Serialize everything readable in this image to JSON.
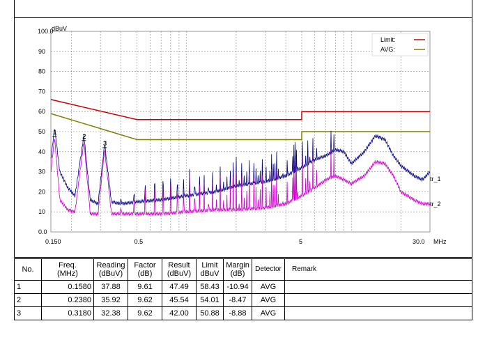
{
  "chart_data": {
    "type": "line",
    "title": "",
    "ylabel": "dBuV",
    "xlabel": "MHz",
    "x_scale": "log",
    "xlim": [
      0.15,
      30.0
    ],
    "ylim": [
      0.0,
      100.0
    ],
    "y_ticks": [
      "0.0",
      "10",
      "20",
      "30",
      "40",
      "50",
      "60",
      "70",
      "80",
      "90",
      "100.0"
    ],
    "x_tick_labels": [
      "0.150",
      "0.5",
      "5",
      "30.0"
    ],
    "x_ticks": [
      0.15,
      0.5,
      5,
      30
    ],
    "grid": true,
    "legend_position": "top-right",
    "legend": [
      {
        "label": "Limit:",
        "color": "#cc0000"
      },
      {
        "label": "AVG:",
        "color": "#808000"
      }
    ],
    "series": [
      {
        "name": "Limit:",
        "color": "#cc0000",
        "x": [
          0.15,
          0.5,
          0.5,
          5.0,
          5.0,
          30.0
        ],
        "y": [
          66.0,
          56.0,
          56.0,
          56.0,
          60.0,
          60.0
        ]
      },
      {
        "name": "AVG:",
        "color": "#808000",
        "x": [
          0.15,
          0.5,
          0.5,
          5.0,
          5.0,
          30.0
        ],
        "y": [
          59.0,
          46.0,
          46.0,
          46.0,
          50.0,
          50.0
        ]
      },
      {
        "name": "",
        "color": "#000080",
        "x": [
          0.15,
          0.158,
          0.17,
          0.19,
          0.21,
          0.238,
          0.26,
          0.29,
          0.318,
          0.35,
          0.4,
          0.5,
          0.7,
          1.0,
          1.5,
          2.0,
          3.0,
          4.0,
          5.0,
          6.0,
          7.0,
          8.0,
          9.0,
          10.0,
          12.0,
          14.0,
          16.0,
          18.0,
          20.0,
          24.0,
          27.0,
          30.0
        ],
        "y": [
          36,
          52,
          30,
          22,
          18,
          48,
          16,
          14,
          44,
          15,
          14,
          15,
          16,
          18,
          20,
          23,
          25,
          28,
          32,
          36,
          38,
          41,
          40,
          34,
          40,
          48,
          46,
          38,
          33,
          28,
          26,
          30
        ]
      },
      {
        "name": "",
        "color": "#cc00cc",
        "x": [
          0.15,
          0.158,
          0.17,
          0.19,
          0.21,
          0.238,
          0.26,
          0.29,
          0.318,
          0.35,
          0.4,
          0.5,
          0.7,
          1.0,
          1.5,
          2.0,
          3.0,
          4.0,
          5.0,
          6.0,
          7.0,
          8.0,
          9.0,
          10.0,
          12.0,
          14.0,
          16.0,
          18.0,
          20.0,
          24.0,
          27.0,
          30.0
        ],
        "y": [
          30,
          47,
          16,
          11,
          10,
          45,
          9,
          9,
          41,
          9,
          9,
          9,
          9,
          10,
          11,
          11,
          12,
          14,
          18,
          22,
          26,
          28,
          26,
          24,
          28,
          35,
          34,
          28,
          20,
          16,
          14,
          14
        ]
      }
    ],
    "peak_markers": [
      {
        "label": "1",
        "x": 0.158,
        "y": 47.49
      },
      {
        "label": "2",
        "x": 0.238,
        "y": 45.54
      },
      {
        "label": "3",
        "x": 0.318,
        "y": 42.0
      }
    ],
    "series_end_labels": [
      "tr_1",
      "tr_2"
    ]
  },
  "table": {
    "headers": [
      [
        "No.",
        ""
      ],
      [
        "Freq.",
        "(MHz)"
      ],
      [
        "Reading",
        "(dBuV)"
      ],
      [
        "Factor",
        "(dB)"
      ],
      [
        "Result",
        "(dBuV)"
      ],
      [
        "Limit",
        "dBuV"
      ],
      [
        "Margin",
        "(dB)"
      ],
      [
        "Detector",
        ""
      ],
      [
        "Remark",
        ""
      ]
    ],
    "rows": [
      [
        "1",
        "0.1580",
        "37.88",
        "9.61",
        "47.49",
        "58.43",
        "-10.94",
        "AVG",
        ""
      ],
      [
        "2",
        "0.2380",
        "35.92",
        "9.62",
        "45.54",
        "54.01",
        "-8.47",
        "AVG",
        ""
      ],
      [
        "3",
        "0.3180",
        "32.38",
        "9.62",
        "42.00",
        "50.88",
        "-8.88",
        "AVG",
        ""
      ]
    ]
  }
}
